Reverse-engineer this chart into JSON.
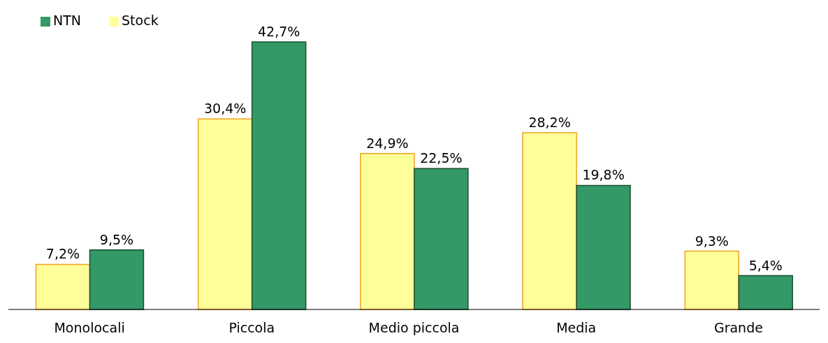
{
  "chart_data": {
    "type": "bar",
    "categories": [
      "Monolocali",
      "Piccola",
      "Medio piccola",
      "Media",
      "Grande"
    ],
    "series": [
      {
        "name": "Stock",
        "color": "#ffff99",
        "values": [
          7.2,
          30.4,
          24.9,
          28.2,
          9.3
        ],
        "value_labels": [
          "7,2%",
          "30,4%",
          "24,9%",
          "28,2%",
          "9,3%"
        ]
      },
      {
        "name": "NTN",
        "color": "#339966",
        "values": [
          9.5,
          42.7,
          22.5,
          19.8,
          5.4
        ],
        "value_labels": [
          "9,5%",
          "42,7%",
          "22,5%",
          "19,8%",
          "5,4%"
        ]
      }
    ],
    "legend": "top left",
    "grid": false
  }
}
